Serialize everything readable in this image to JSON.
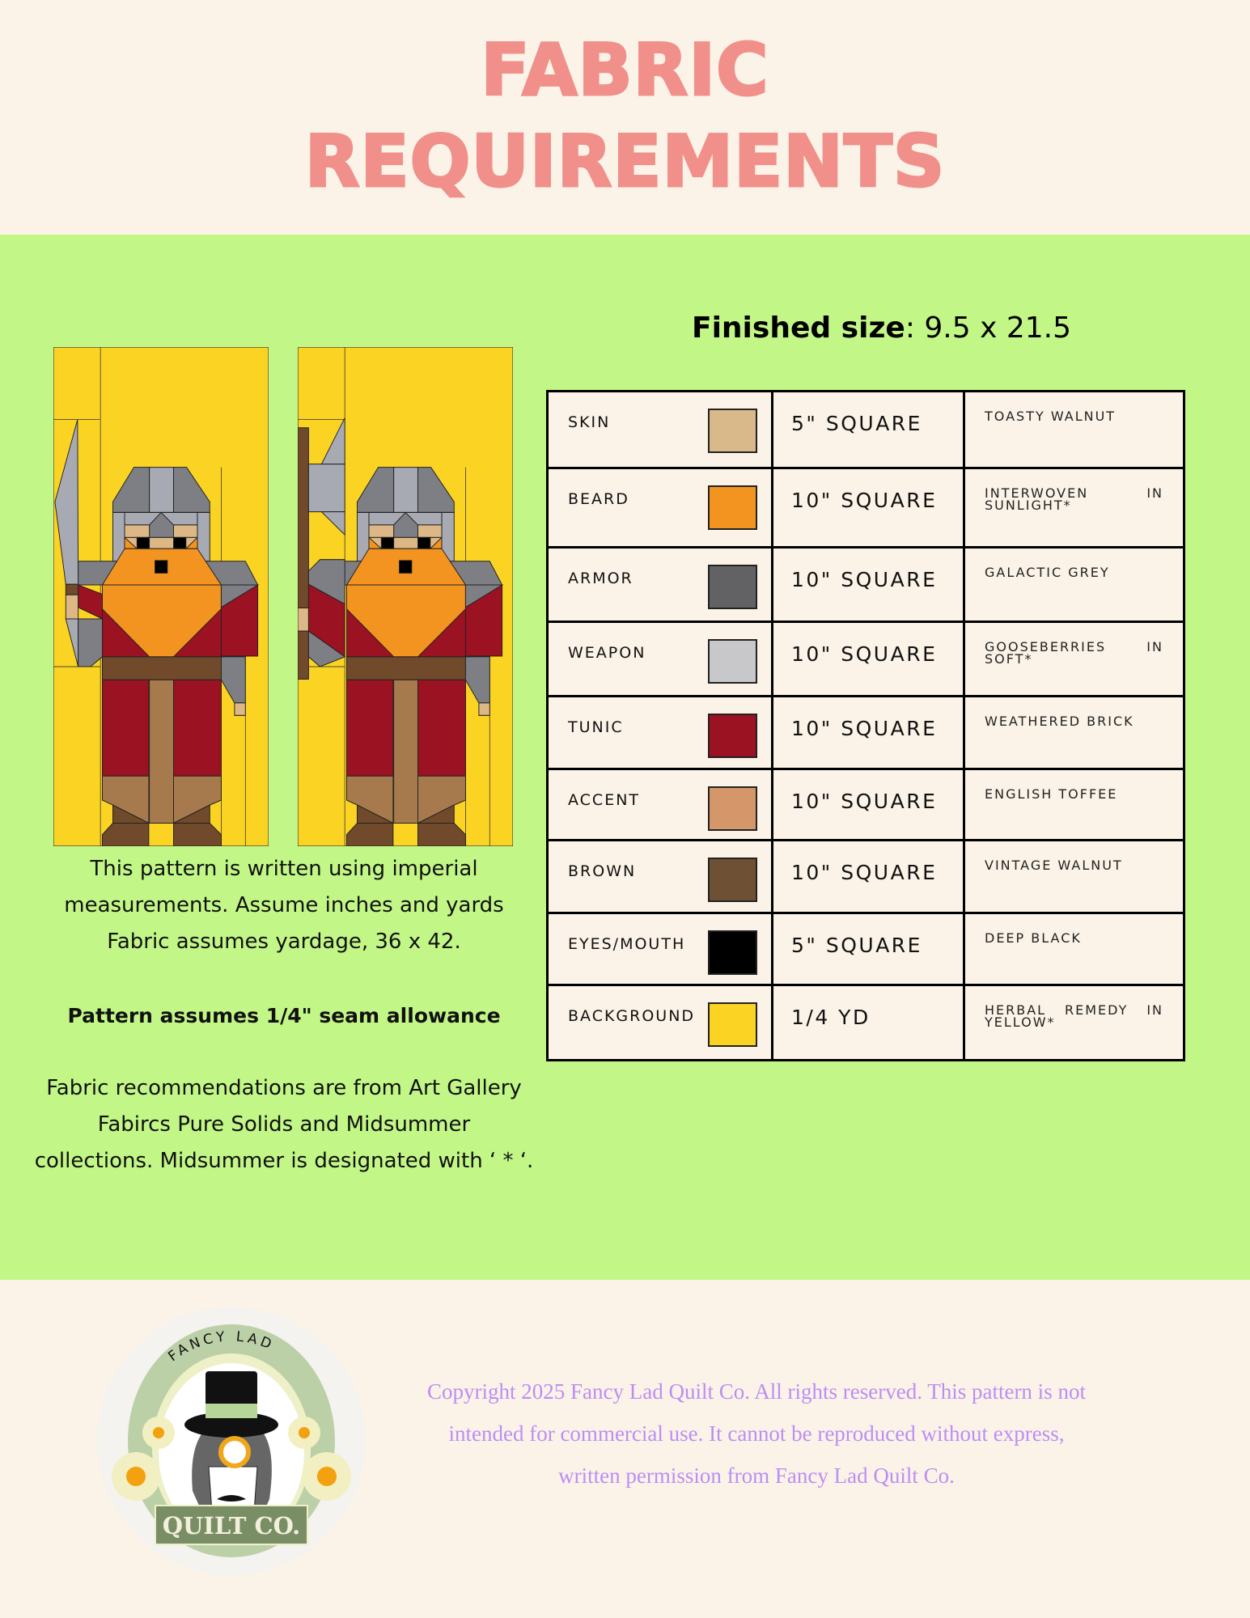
{
  "header": {
    "title_line1": "FABRIC",
    "title_line2": "REQUIREMENTS"
  },
  "finished_size": {
    "label": "Finished size",
    "value": ": 9.5 x 21.5"
  },
  "table": {
    "rows": [
      {
        "part": "SKIN",
        "color": "#D9B98A",
        "amount": "5\" SQUARE",
        "fabric": "TOASTY WALNUT"
      },
      {
        "part": "BEARD",
        "color": "#F39420",
        "amount": "10\" SQUARE",
        "fabric": "INTERWOVEN IN SUNLIGHT*"
      },
      {
        "part": "ARMOR",
        "color": "#626264",
        "amount": "10\" SQUARE",
        "fabric": "GALACTIC GREY"
      },
      {
        "part": "WEAPON",
        "color": "#C8C8CA",
        "amount": "10\" SQUARE",
        "fabric": "GOOSEBERRIES IN SOFT*"
      },
      {
        "part": "TUNIC",
        "color": "#9B1222",
        "amount": "10\" SQUARE",
        "fabric": "WEATHERED BRICK"
      },
      {
        "part": "ACCENT",
        "color": "#D5976A",
        "amount": "10\" SQUARE",
        "fabric": "ENGLISH TOFFEE"
      },
      {
        "part": "BROWN",
        "color": "#6E5035",
        "amount": "10\" SQUARE",
        "fabric": "VINTAGE WALNUT"
      },
      {
        "part": "EYES/MOUTH",
        "color": "#000000",
        "amount": "5\" SQUARE",
        "fabric": "DEEP BLACK"
      },
      {
        "part": "BACKGROUND",
        "color": "#FBD323",
        "amount": "1/4 YD",
        "fabric": "HERBAL REMEDY IN YELLOW*"
      }
    ]
  },
  "notes": {
    "imperial": [
      "This pattern is written using imperial",
      "measurements. Assume inches and yards",
      "Fabric assumes yardage, 36 x 42."
    ],
    "seam": "Pattern assumes 1/4\" seam allowance",
    "recommendations": [
      "Fabric recommendations are from Art Gallery",
      "Fabircs Pure Solids and Midsummer",
      "collections. Midsummer is designated with ‘ * ‘."
    ]
  },
  "footer": {
    "logo_top": "FANCY LAD",
    "logo_bottom": "QUILT CO.",
    "copyright": [
      "Copyright 2025 Fancy Lad Quilt Co. All rights reserved. This pattern is not",
      "intended for commercial use. It cannot be reproduced without express,",
      "written permission from Fancy Lad Quilt Co."
    ]
  },
  "colors": {
    "title": "#F1908A",
    "band": "#C2F787",
    "page": "#FBF3E7",
    "copyright": "#BC8EF5"
  }
}
